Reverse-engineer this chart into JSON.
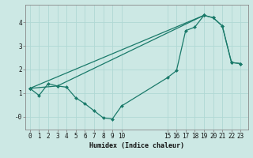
{
  "xlabel": "Humidex (Indice chaleur)",
  "bg_color": "#cce8e4",
  "line_color": "#1a7a6a",
  "grid_color": "#b0d8d4",
  "curve1_x": [
    0,
    1,
    2,
    3,
    4,
    5,
    6,
    7,
    8,
    9,
    10,
    15,
    16,
    17,
    18,
    19,
    20,
    21,
    22,
    23
  ],
  "curve1_y": [
    1.2,
    0.9,
    1.4,
    1.3,
    1.25,
    0.8,
    0.55,
    0.25,
    -0.05,
    -0.1,
    0.45,
    1.65,
    1.95,
    3.65,
    3.8,
    4.3,
    4.2,
    3.85,
    2.3,
    2.25
  ],
  "curve2_x": [
    0,
    19
  ],
  "curve2_y": [
    1.2,
    4.3
  ],
  "curve3_x": [
    0,
    3,
    19,
    20,
    21,
    22,
    23
  ],
  "curve3_y": [
    1.2,
    1.3,
    4.3,
    4.2,
    3.85,
    2.3,
    2.25
  ],
  "xlim": [
    -0.5,
    23.8
  ],
  "ylim": [
    -0.55,
    4.75
  ],
  "xticks": [
    0,
    1,
    2,
    3,
    4,
    5,
    6,
    7,
    8,
    9,
    10,
    15,
    16,
    17,
    18,
    19,
    20,
    21,
    22,
    23
  ],
  "yticks": [
    0,
    1,
    2,
    3,
    4
  ],
  "ytick_labels": [
    "-0",
    "1",
    "2",
    "3",
    "4"
  ],
  "marker": "D",
  "marker_size": 2.0,
  "linewidth": 0.9,
  "tick_fontsize": 5.5,
  "xlabel_fontsize": 6.0
}
